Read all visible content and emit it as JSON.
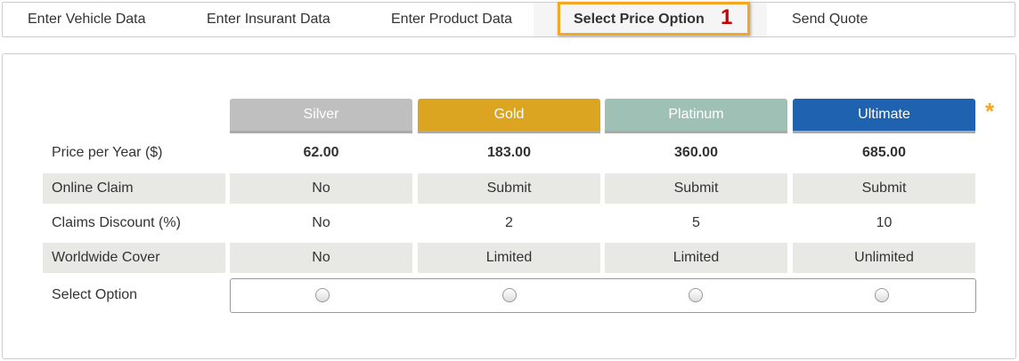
{
  "nav": {
    "tabs": [
      {
        "label": "Enter Vehicle Data"
      },
      {
        "label": "Enter Insurant Data"
      },
      {
        "label": "Enter Product Data"
      },
      {
        "label": "Select Price Option",
        "active": true
      },
      {
        "label": "Send Quote"
      }
    ],
    "step_badge": "1"
  },
  "plans": [
    {
      "name": "Silver",
      "color": "#bfbfbf"
    },
    {
      "name": "Gold",
      "color": "#dba522"
    },
    {
      "name": "Platinum",
      "color": "#9fc1b5"
    },
    {
      "name": "Ultimate",
      "color": "#1f62b0"
    }
  ],
  "required_mark": "*",
  "rows": [
    {
      "label": "Price per Year ($)",
      "values": [
        "62.00",
        "183.00",
        "360.00",
        "685.00"
      ]
    },
    {
      "label": "Online Claim",
      "values": [
        "No",
        "Submit",
        "Submit",
        "Submit"
      ]
    },
    {
      "label": "Claims Discount (%)",
      "values": [
        "No",
        "2",
        "5",
        "10"
      ]
    },
    {
      "label": "Worldwide Cover",
      "values": [
        "No",
        "Limited",
        "Limited",
        "Unlimited"
      ]
    }
  ],
  "select_label": "Select Option"
}
